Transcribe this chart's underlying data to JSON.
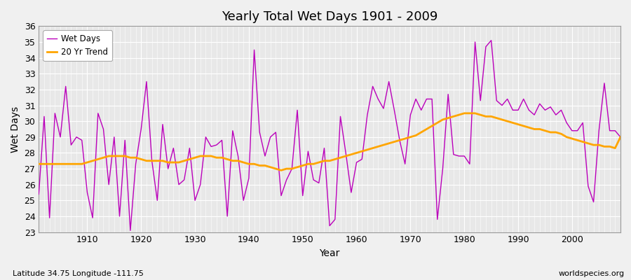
{
  "title": "Yearly Total Wet Days 1901 - 2009",
  "xlabel": "Year",
  "ylabel": "Wet Days",
  "lat_lon_label": "Latitude 34.75 Longitude -111.75",
  "watermark": "worldspecies.org",
  "xlim": [
    1901,
    2009
  ],
  "ylim": [
    23,
    36
  ],
  "yticks": [
    23,
    24,
    25,
    26,
    27,
    28,
    29,
    30,
    31,
    32,
    33,
    34,
    35,
    36
  ],
  "xticks": [
    1910,
    1920,
    1930,
    1940,
    1950,
    1960,
    1970,
    1980,
    1990,
    2000
  ],
  "wet_days_color": "#BB00BB",
  "trend_color": "#FFA500",
  "background_color": "#F0F0F0",
  "plot_bg_color": "#E8E8E8",
  "grid_color": "#FFFFFF",
  "wet_days": [
    25.4,
    30.3,
    23.9,
    30.5,
    29.0,
    32.2,
    28.5,
    29.0,
    28.8,
    25.5,
    23.9,
    30.5,
    29.5,
    26.0,
    29.0,
    24.0,
    28.8,
    23.1,
    27.3,
    29.5,
    32.5,
    27.5,
    25.0,
    29.8,
    27.0,
    28.3,
    26.0,
    26.3,
    28.3,
    25.0,
    26.0,
    29.0,
    28.4,
    28.5,
    28.8,
    24.0,
    29.4,
    27.8,
    25.0,
    26.4,
    34.5,
    29.3,
    27.8,
    29.0,
    29.3,
    25.3,
    26.3,
    27.0,
    30.7,
    25.3,
    28.1,
    26.3,
    26.1,
    28.3,
    23.4,
    23.8,
    30.3,
    28.0,
    25.5,
    27.4,
    27.6,
    30.4,
    32.2,
    31.4,
    30.8,
    32.5,
    30.7,
    28.8,
    27.3,
    30.4,
    31.4,
    30.7,
    31.4,
    31.4,
    23.8,
    27.0,
    31.7,
    27.9,
    27.8,
    27.8,
    27.3,
    35.0,
    31.3,
    34.7,
    35.1,
    31.3,
    31.0,
    31.4,
    30.7,
    30.7,
    31.4,
    30.7,
    30.4,
    31.1,
    30.7,
    30.9,
    30.4,
    30.7,
    29.9,
    29.4,
    29.4,
    29.9,
    25.9,
    24.9,
    29.4,
    32.4,
    29.4,
    29.4,
    29.0
  ],
  "trend": [
    27.3,
    27.3,
    27.3,
    27.3,
    27.3,
    27.3,
    27.3,
    27.3,
    27.3,
    27.4,
    27.5,
    27.6,
    27.7,
    27.8,
    27.8,
    27.8,
    27.8,
    27.7,
    27.7,
    27.6,
    27.5,
    27.5,
    27.5,
    27.5,
    27.4,
    27.4,
    27.4,
    27.5,
    27.6,
    27.7,
    27.8,
    27.8,
    27.8,
    27.7,
    27.7,
    27.6,
    27.5,
    27.5,
    27.4,
    27.3,
    27.3,
    27.2,
    27.2,
    27.1,
    27.0,
    26.9,
    27.0,
    27.0,
    27.1,
    27.2,
    27.3,
    27.3,
    27.4,
    27.5,
    27.5,
    27.6,
    27.7,
    27.8,
    27.9,
    28.0,
    28.1,
    28.2,
    28.3,
    28.4,
    28.5,
    28.6,
    28.7,
    28.8,
    28.9,
    29.0,
    29.1,
    29.3,
    29.5,
    29.7,
    29.9,
    30.1,
    30.2,
    30.3,
    30.4,
    30.5,
    30.5,
    30.5,
    30.4,
    30.3,
    30.3,
    30.2,
    30.1,
    30.0,
    29.9,
    29.8,
    29.7,
    29.6,
    29.5,
    29.5,
    29.4,
    29.3,
    29.3,
    29.2,
    29.0,
    28.9,
    28.8,
    28.7,
    28.6,
    28.5,
    28.5,
    28.4,
    28.4,
    28.3,
    29.0
  ]
}
